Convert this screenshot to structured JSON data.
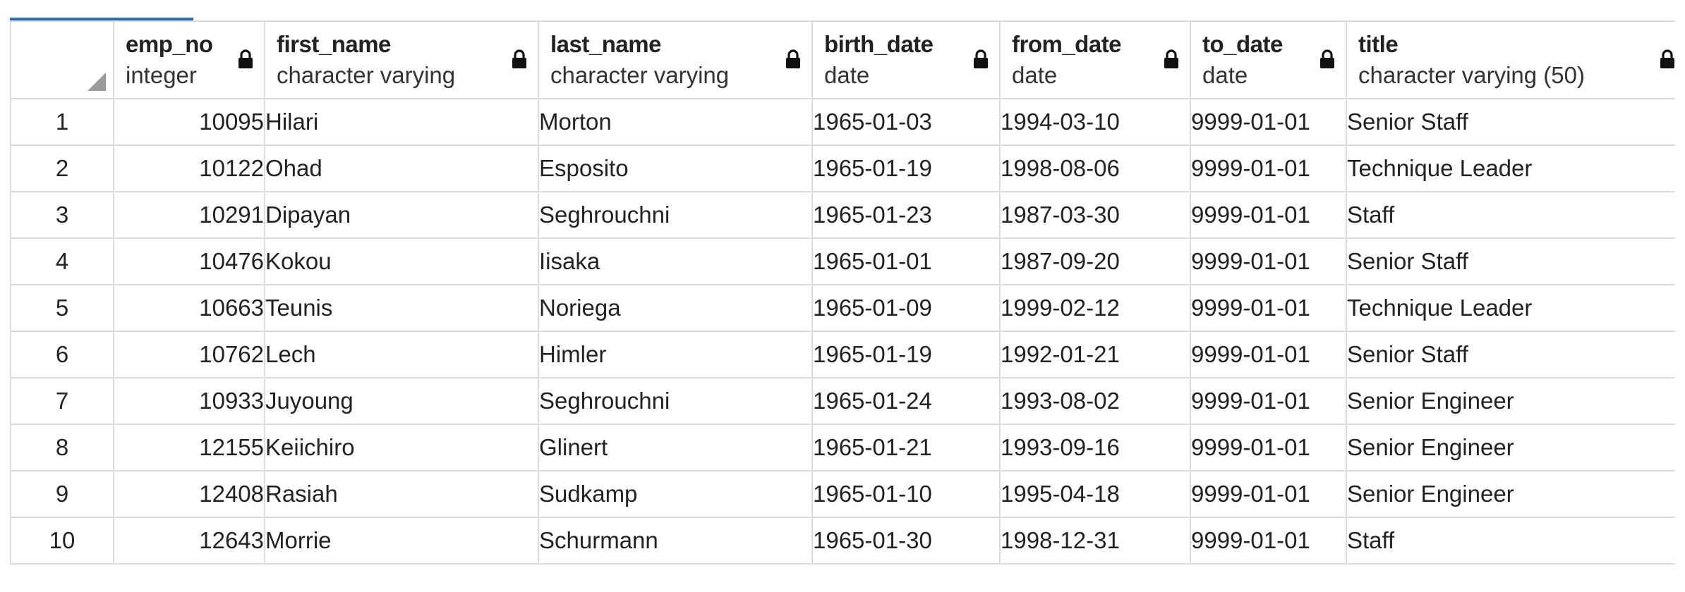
{
  "columns": [
    {
      "name": "emp_no",
      "type": "integer"
    },
    {
      "name": "first_name",
      "type": "character varying"
    },
    {
      "name": "last_name",
      "type": "character varying"
    },
    {
      "name": "birth_date",
      "type": "date"
    },
    {
      "name": "from_date",
      "type": "date"
    },
    {
      "name": "to_date",
      "type": "date"
    },
    {
      "name": "title",
      "type": "character varying (50)"
    }
  ],
  "rows": [
    {
      "n": "1",
      "emp_no": "10095",
      "first_name": "Hilari",
      "last_name": "Morton",
      "birth_date": "1965-01-03",
      "from_date": "1994-03-10",
      "to_date": "9999-01-01",
      "title": "Senior Staff"
    },
    {
      "n": "2",
      "emp_no": "10122",
      "first_name": "Ohad",
      "last_name": "Esposito",
      "birth_date": "1965-01-19",
      "from_date": "1998-08-06",
      "to_date": "9999-01-01",
      "title": "Technique Leader"
    },
    {
      "n": "3",
      "emp_no": "10291",
      "first_name": "Dipayan",
      "last_name": "Seghrouchni",
      "birth_date": "1965-01-23",
      "from_date": "1987-03-30",
      "to_date": "9999-01-01",
      "title": "Staff"
    },
    {
      "n": "4",
      "emp_no": "10476",
      "first_name": "Kokou",
      "last_name": "Iisaka",
      "birth_date": "1965-01-01",
      "from_date": "1987-09-20",
      "to_date": "9999-01-01",
      "title": "Senior Staff"
    },
    {
      "n": "5",
      "emp_no": "10663",
      "first_name": "Teunis",
      "last_name": "Noriega",
      "birth_date": "1965-01-09",
      "from_date": "1999-02-12",
      "to_date": "9999-01-01",
      "title": "Technique Leader"
    },
    {
      "n": "6",
      "emp_no": "10762",
      "first_name": "Lech",
      "last_name": "Himler",
      "birth_date": "1965-01-19",
      "from_date": "1992-01-21",
      "to_date": "9999-01-01",
      "title": "Senior Staff"
    },
    {
      "n": "7",
      "emp_no": "10933",
      "first_name": "Juyoung",
      "last_name": "Seghrouchni",
      "birth_date": "1965-01-24",
      "from_date": "1993-08-02",
      "to_date": "9999-01-01",
      "title": "Senior Engineer"
    },
    {
      "n": "8",
      "emp_no": "12155",
      "first_name": "Keiichiro",
      "last_name": "Glinert",
      "birth_date": "1965-01-21",
      "from_date": "1993-09-16",
      "to_date": "9999-01-01",
      "title": "Senior Engineer"
    },
    {
      "n": "9",
      "emp_no": "12408",
      "first_name": "Rasiah",
      "last_name": "Sudkamp",
      "birth_date": "1965-01-10",
      "from_date": "1995-04-18",
      "to_date": "9999-01-01",
      "title": "Senior Engineer"
    },
    {
      "n": "10",
      "emp_no": "12643",
      "first_name": "Morrie",
      "last_name": "Schurmann",
      "birth_date": "1965-01-30",
      "from_date": "1998-12-31",
      "to_date": "9999-01-01",
      "title": "Staff"
    }
  ]
}
